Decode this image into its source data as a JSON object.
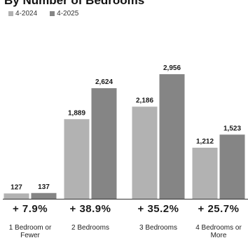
{
  "title": "By Number of Bedrooms",
  "legend": [
    {
      "label": "4-2024",
      "color": "#b2b2b2"
    },
    {
      "label": "4-2025",
      "color": "#858585"
    }
  ],
  "chart_data": {
    "type": "bar",
    "categories": [
      "1 Bedroom or Fewer",
      "2 Bedrooms",
      "3 Bedrooms",
      "4 Bedrooms or More"
    ],
    "series": [
      {
        "name": "4-2024",
        "values": [
          127,
          1889,
          2186,
          1212
        ],
        "color": "#b2b2b2"
      },
      {
        "name": "4-2025",
        "values": [
          137,
          2624,
          2956,
          1523
        ],
        "color": "#858585"
      }
    ],
    "changes": [
      "+ 7.9%",
      "+ 38.9%",
      "+ 35.2%",
      "+ 25.7%"
    ],
    "ylim": [
      0,
      3000
    ],
    "grid": false,
    "legend_position": "top-left"
  }
}
